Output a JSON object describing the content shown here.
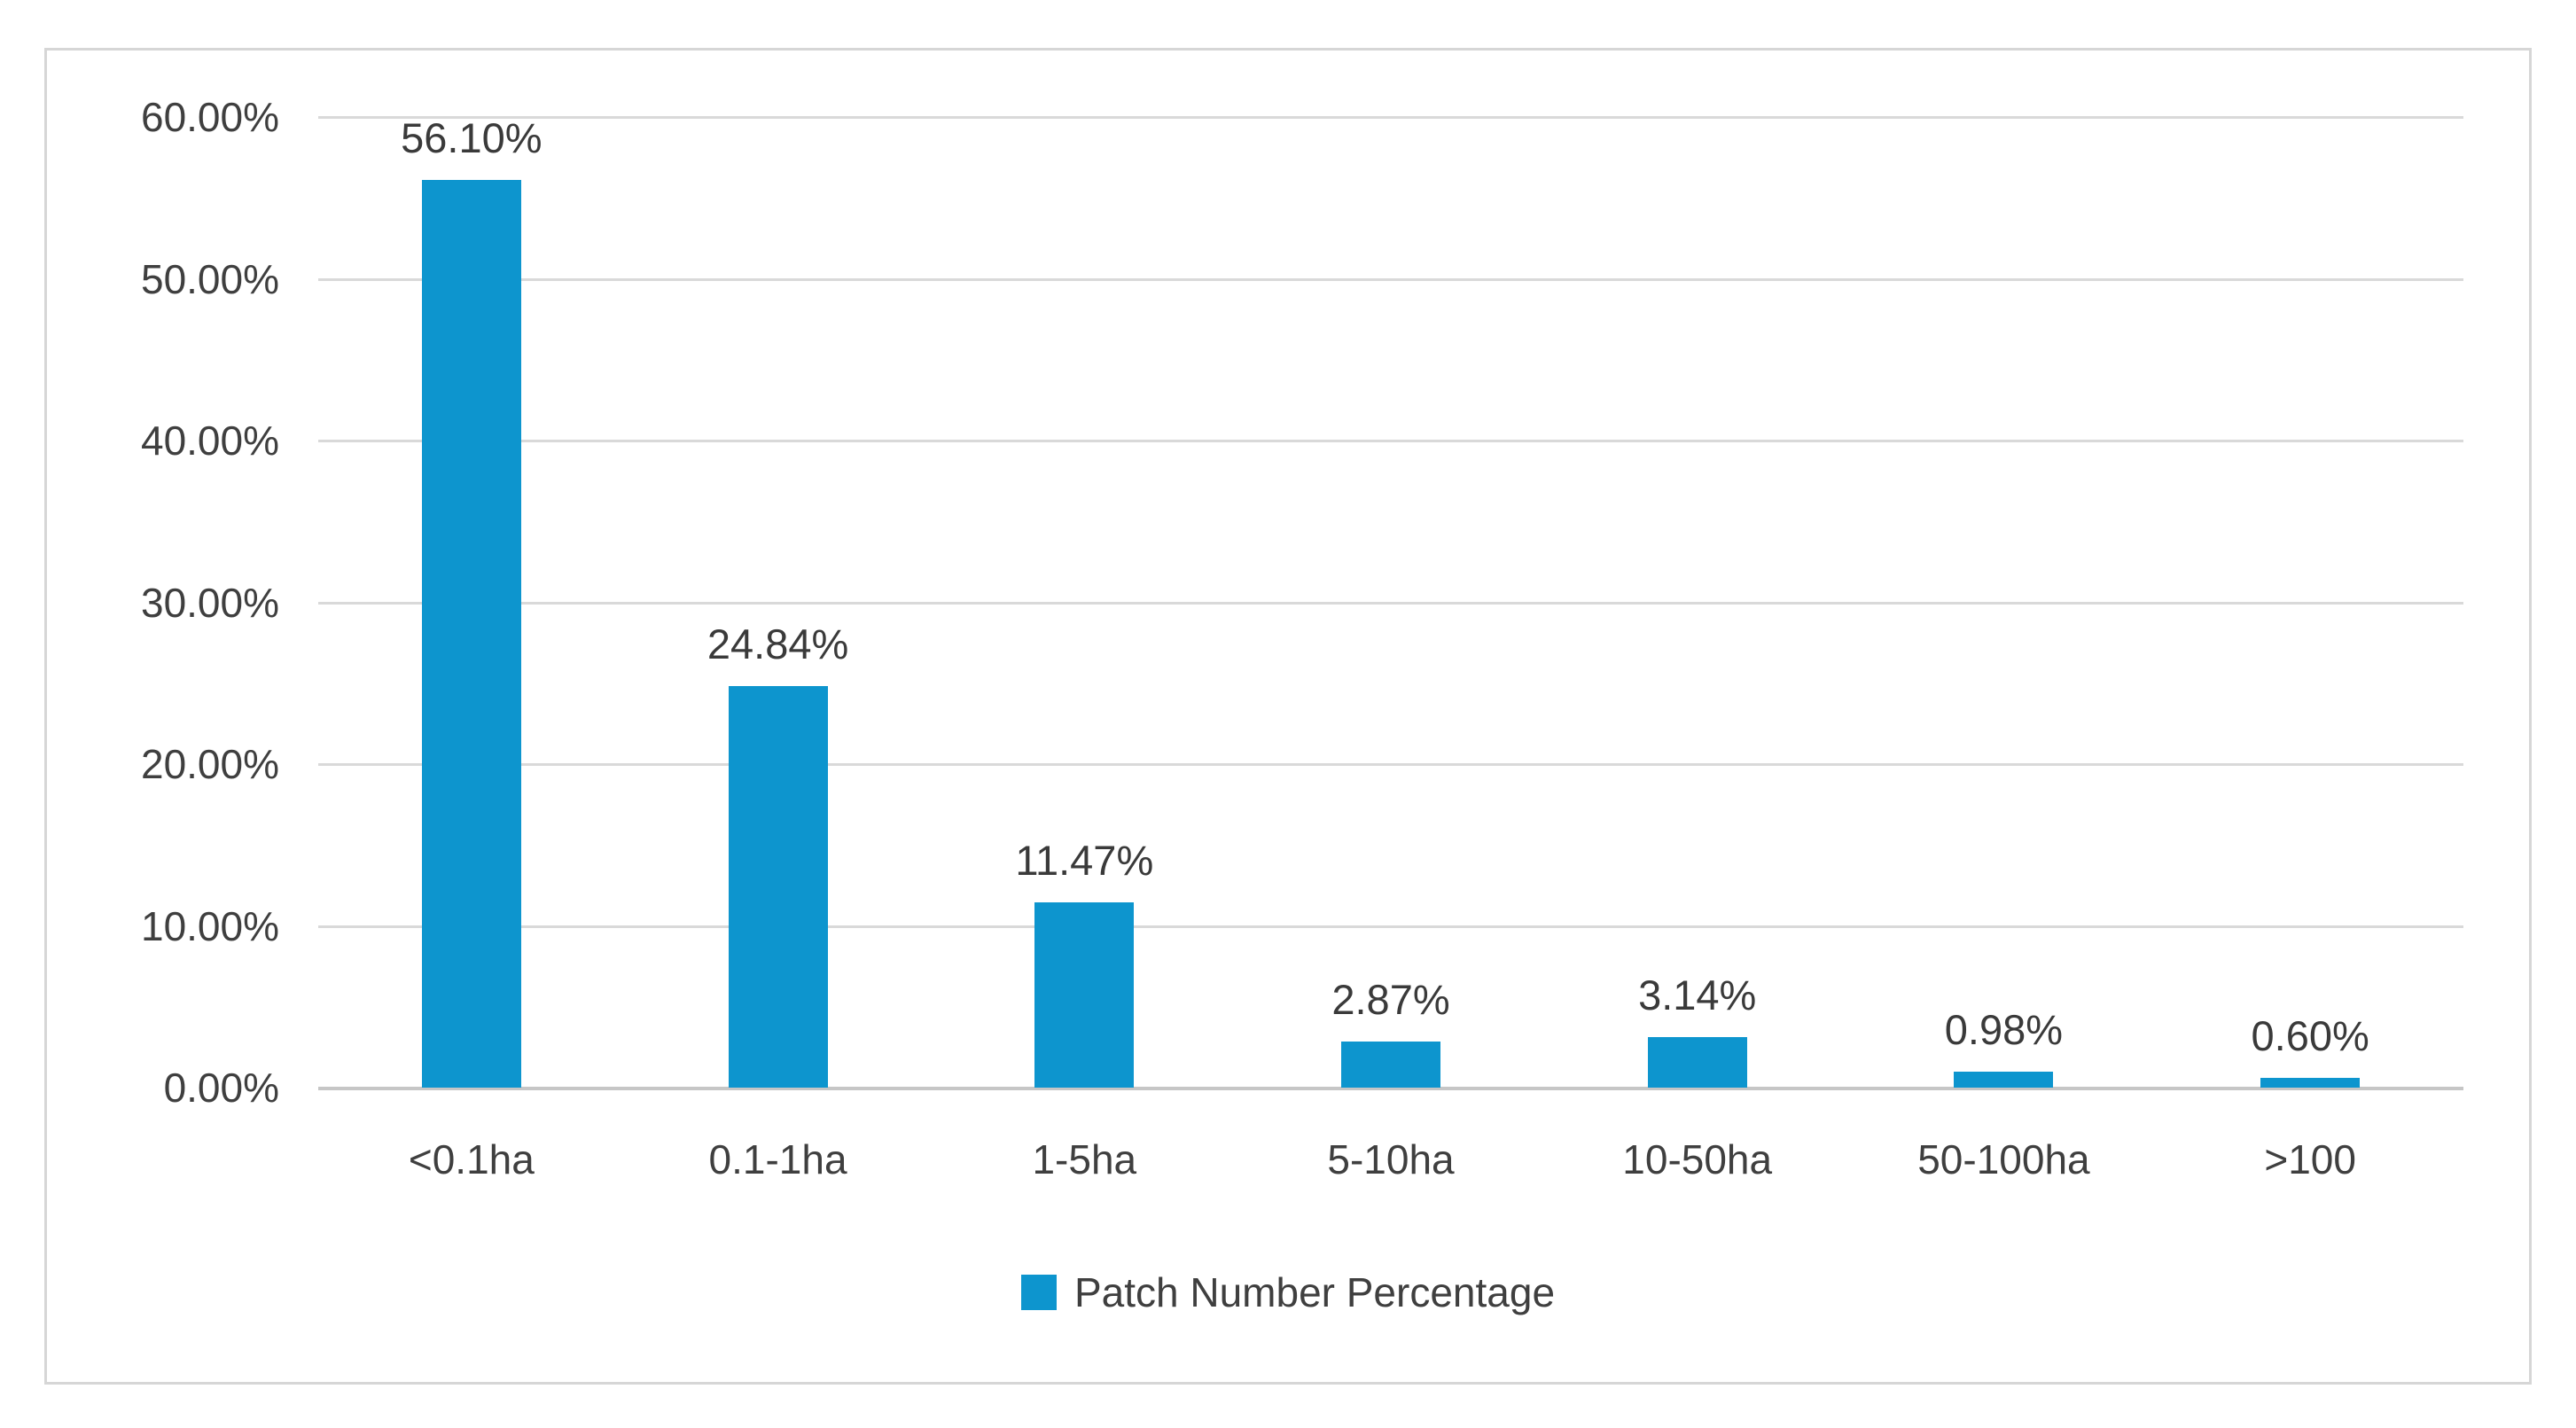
{
  "chart_data": {
    "type": "bar",
    "title": "",
    "categories": [
      "<0.1ha",
      "0.1-1ha",
      "1-5ha",
      "5-10ha",
      "10-50ha",
      "50-100ha",
      ">100"
    ],
    "values": [
      56.1,
      24.84,
      11.47,
      2.87,
      3.14,
      0.98,
      0.6
    ],
    "data_labels": [
      "56.10%",
      "24.84%",
      "11.47%",
      "2.87%",
      "3.14%",
      "0.98%",
      "0.60%"
    ],
    "y_ticks": [
      {
        "label": "60.00%",
        "value": 60
      },
      {
        "label": "50.00%",
        "value": 50
      },
      {
        "label": "40.00%",
        "value": 40
      },
      {
        "label": "30.00%",
        "value": 30
      },
      {
        "label": "20.00%",
        "value": 20
      },
      {
        "label": "10.00%",
        "value": 10
      },
      {
        "label": "0.00%",
        "value": 0
      }
    ],
    "ylim": [
      0,
      60
    ],
    "xlabel": "",
    "ylabel": "",
    "grid": true,
    "legend": {
      "label": "Patch Number Percentage",
      "position": "bottom"
    },
    "colors": {
      "bar": "#0d95ce",
      "gridline": "#d9d9d9",
      "axis_line": "#c6c6c6",
      "text": "#3f3f3f",
      "frame_border": "#d6d6d6",
      "background": "#ffffff"
    }
  }
}
